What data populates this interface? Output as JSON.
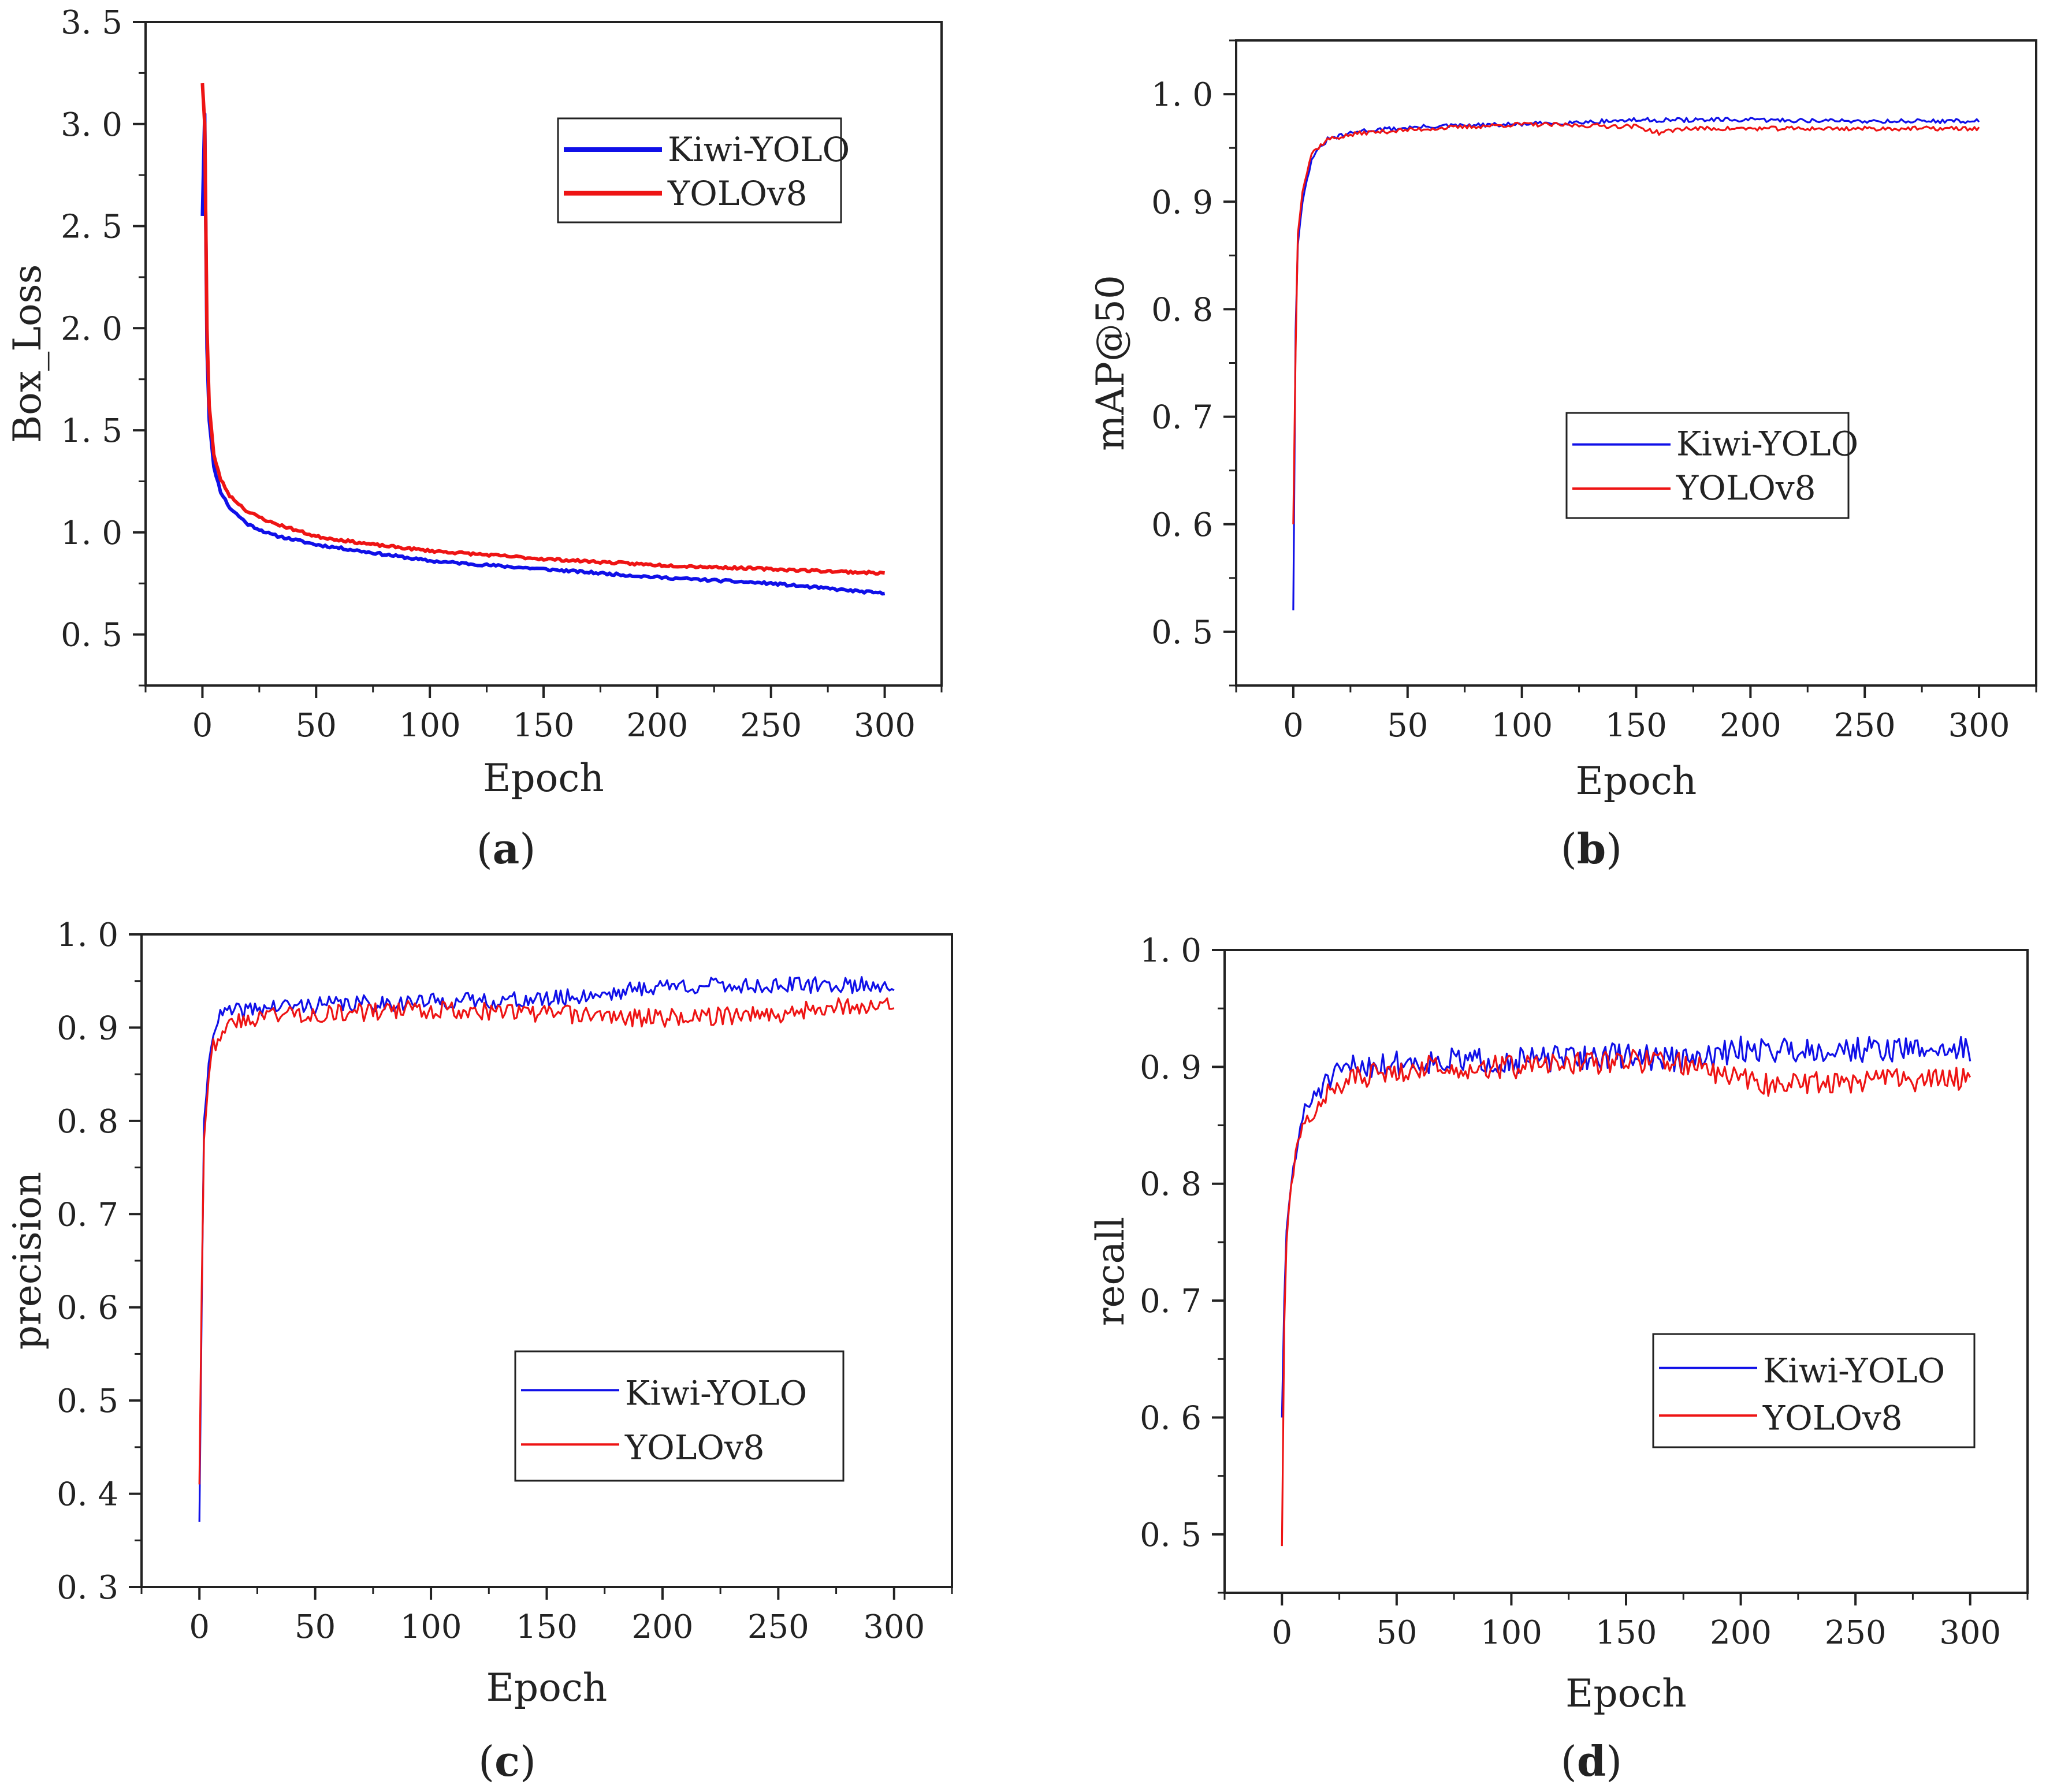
{
  "figure": {
    "colors": {
      "kiwi": "#1010e8",
      "yolo": "#ee1414",
      "axis": "#222222"
    }
  },
  "chart_data": [
    {
      "id": "a",
      "caption_letter": "a",
      "type": "line",
      "title": "",
      "xlabel": "Epoch",
      "ylabel": "Box_Loss",
      "xlim": [
        -25,
        325
      ],
      "ylim": [
        0.25,
        3.5
      ],
      "xticks": [
        0,
        50,
        100,
        150,
        200,
        250,
        300
      ],
      "xtick_labels": [
        "0",
        "50",
        "100",
        "150",
        "200",
        "250",
        "300"
      ],
      "yticks": [
        0.5,
        1.0,
        1.5,
        2.0,
        2.5,
        3.0,
        3.5
      ],
      "ytick_labels": [
        "0. 5",
        "1. 0",
        "1. 5",
        "2. 0",
        "2. 5",
        "3. 0",
        "3. 5"
      ],
      "legend_position": "top-right",
      "series": [
        {
          "name": "Kiwi-YOLO",
          "color": "#1010e8",
          "noise": 0.006,
          "seed": 11,
          "points": [
            [
              0,
              2.55
            ],
            [
              1,
              3.05
            ],
            [
              2,
              1.9
            ],
            [
              3,
              1.55
            ],
            [
              5,
              1.32
            ],
            [
              8,
              1.2
            ],
            [
              12,
              1.12
            ],
            [
              20,
              1.04
            ],
            [
              30,
              0.99
            ],
            [
              50,
              0.94
            ],
            [
              75,
              0.9
            ],
            [
              100,
              0.86
            ],
            [
              150,
              0.82
            ],
            [
              200,
              0.78
            ],
            [
              250,
              0.75
            ],
            [
              300,
              0.7
            ]
          ]
        },
        {
          "name": "YOLOv8",
          "color": "#ee1414",
          "noise": 0.006,
          "seed": 23,
          "points": [
            [
              0,
              3.2
            ],
            [
              1,
              3.0
            ],
            [
              2,
              2.0
            ],
            [
              3,
              1.62
            ],
            [
              5,
              1.38
            ],
            [
              8,
              1.26
            ],
            [
              12,
              1.18
            ],
            [
              20,
              1.1
            ],
            [
              30,
              1.05
            ],
            [
              50,
              0.98
            ],
            [
              75,
              0.94
            ],
            [
              100,
              0.91
            ],
            [
              150,
              0.87
            ],
            [
              200,
              0.84
            ],
            [
              250,
              0.82
            ],
            [
              300,
              0.8
            ]
          ]
        }
      ]
    },
    {
      "id": "b",
      "caption_letter": "b",
      "type": "line",
      "title": "",
      "xlabel": "Epoch",
      "ylabel": "mAP@50",
      "xlim": [
        -25,
        325
      ],
      "ylim": [
        0.45,
        1.05
      ],
      "xticks": [
        0,
        50,
        100,
        150,
        200,
        250,
        300
      ],
      "xtick_labels": [
        "0",
        "50",
        "100",
        "150",
        "200",
        "250",
        "300"
      ],
      "yticks": [
        0.5,
        0.6,
        0.7,
        0.8,
        0.9,
        1.0
      ],
      "ytick_labels": [
        "0. 5",
        "0. 6",
        "0. 7",
        "0. 8",
        "0. 9",
        "1. 0"
      ],
      "legend_position": "center-right",
      "series": [
        {
          "name": "Kiwi-YOLO",
          "color": "#1010e8",
          "noise": 0.002,
          "seed": 31,
          "points": [
            [
              0,
              0.52
            ],
            [
              1,
              0.78
            ],
            [
              2,
              0.86
            ],
            [
              4,
              0.9
            ],
            [
              8,
              0.94
            ],
            [
              15,
              0.958
            ],
            [
              30,
              0.966
            ],
            [
              60,
              0.97
            ],
            [
              100,
              0.972
            ],
            [
              150,
              0.976
            ],
            [
              200,
              0.976
            ],
            [
              250,
              0.975
            ],
            [
              300,
              0.975
            ]
          ]
        },
        {
          "name": "YOLOv8",
          "color": "#ee1414",
          "noise": 0.002,
          "seed": 37,
          "points": [
            [
              0,
              0.6
            ],
            [
              1,
              0.76
            ],
            [
              2,
              0.87
            ],
            [
              4,
              0.91
            ],
            [
              8,
              0.945
            ],
            [
              15,
              0.958
            ],
            [
              30,
              0.964
            ],
            [
              60,
              0.968
            ],
            [
              100,
              0.972
            ],
            [
              150,
              0.97
            ],
            [
              160,
              0.964
            ],
            [
              170,
              0.968
            ],
            [
              200,
              0.968
            ],
            [
              250,
              0.968
            ],
            [
              300,
              0.968
            ]
          ]
        }
      ]
    },
    {
      "id": "c",
      "caption_letter": "c",
      "type": "line",
      "title": "",
      "xlabel": "Epoch",
      "ylabel": "precision",
      "xlim": [
        -25,
        325
      ],
      "ylim": [
        0.3,
        1.0
      ],
      "xticks": [
        0,
        50,
        100,
        150,
        200,
        250,
        300
      ],
      "xtick_labels": [
        "0",
        "50",
        "100",
        "150",
        "200",
        "250",
        "300"
      ],
      "yticks": [
        0.3,
        0.4,
        0.5,
        0.6,
        0.7,
        0.8,
        0.9,
        1.0
      ],
      "ytick_labels": [
        "0. 3",
        "0. 4",
        "0. 5",
        "0. 6",
        "0. 7",
        "0. 8",
        "0. 9",
        "1. 0"
      ],
      "legend_position": "bottom-right",
      "series": [
        {
          "name": "Kiwi-YOLO",
          "color": "#1010e8",
          "noise": 0.009,
          "seed": 41,
          "points": [
            [
              0,
              0.37
            ],
            [
              1,
              0.6
            ],
            [
              2,
              0.8
            ],
            [
              4,
              0.86
            ],
            [
              6,
              0.9
            ],
            [
              10,
              0.915
            ],
            [
              30,
              0.922
            ],
            [
              60,
              0.925
            ],
            [
              100,
              0.928
            ],
            [
              150,
              0.93
            ],
            [
              180,
              0.938
            ],
            [
              200,
              0.945
            ],
            [
              250,
              0.945
            ],
            [
              300,
              0.946
            ]
          ]
        },
        {
          "name": "YOLOv8",
          "color": "#ee1414",
          "noise": 0.01,
          "seed": 43,
          "points": [
            [
              0,
              0.41
            ],
            [
              1,
              0.62
            ],
            [
              2,
              0.78
            ],
            [
              4,
              0.85
            ],
            [
              6,
              0.88
            ],
            [
              10,
              0.9
            ],
            [
              30,
              0.915
            ],
            [
              60,
              0.915
            ],
            [
              100,
              0.92
            ],
            [
              150,
              0.915
            ],
            [
              200,
              0.91
            ],
            [
              250,
              0.915
            ],
            [
              270,
              0.922
            ],
            [
              300,
              0.924
            ]
          ]
        }
      ]
    },
    {
      "id": "d",
      "caption_letter": "d",
      "type": "line",
      "title": "",
      "xlabel": "Epoch",
      "ylabel": "recall",
      "xlim": [
        -25,
        325
      ],
      "ylim": [
        0.45,
        1.0
      ],
      "xticks": [
        0,
        50,
        100,
        150,
        200,
        250,
        300
      ],
      "xtick_labels": [
        "0",
        "50",
        "100",
        "150",
        "200",
        "250",
        "300"
      ],
      "yticks": [
        0.5,
        0.6,
        0.7,
        0.8,
        0.9,
        1.0
      ],
      "ytick_labels": [
        "0. 5",
        "0. 6",
        "0. 7",
        "0. 8",
        "0. 9",
        "1. 0"
      ],
      "legend_position": "bottom-right",
      "series": [
        {
          "name": "Kiwi-YOLO",
          "color": "#1010e8",
          "noise": 0.011,
          "seed": 51,
          "points": [
            [
              0,
              0.6
            ],
            [
              1,
              0.7
            ],
            [
              2,
              0.76
            ],
            [
              4,
              0.8
            ],
            [
              8,
              0.85
            ],
            [
              15,
              0.88
            ],
            [
              30,
              0.9
            ],
            [
              60,
              0.905
            ],
            [
              100,
              0.905
            ],
            [
              150,
              0.91
            ],
            [
              180,
              0.905
            ],
            [
              200,
              0.915
            ],
            [
              250,
              0.915
            ],
            [
              300,
              0.915
            ]
          ]
        },
        {
          "name": "YOLOv8",
          "color": "#ee1414",
          "noise": 0.01,
          "seed": 57,
          "points": [
            [
              0,
              0.49
            ],
            [
              1,
              0.68
            ],
            [
              2,
              0.75
            ],
            [
              4,
              0.8
            ],
            [
              8,
              0.84
            ],
            [
              15,
              0.87
            ],
            [
              30,
              0.89
            ],
            [
              60,
              0.9
            ],
            [
              100,
              0.9
            ],
            [
              150,
              0.905
            ],
            [
              170,
              0.905
            ],
            [
              190,
              0.895
            ],
            [
              210,
              0.885
            ],
            [
              250,
              0.888
            ],
            [
              300,
              0.89
            ]
          ]
        }
      ]
    }
  ]
}
